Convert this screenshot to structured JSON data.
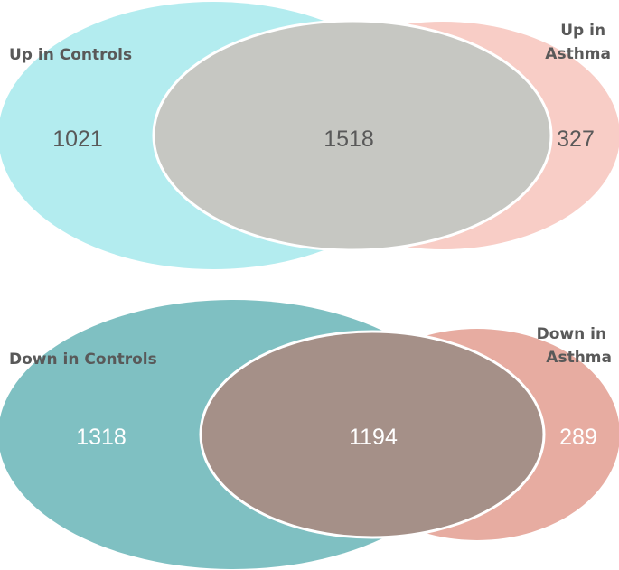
{
  "diagrams": [
    {
      "left_set": {
        "label_lines": [
          "Up in Controls"
        ],
        "count": "1021",
        "color": "#b3ecef"
      },
      "right_set": {
        "label_lines": [
          "Up in",
          "Asthma"
        ],
        "count": "327",
        "color": "#f8cdc6"
      },
      "intersection": {
        "count": "1518",
        "color": "#c6c7c2"
      },
      "label_color": "#595959",
      "count_color": "#595959"
    },
    {
      "left_set": {
        "label_lines": [
          "Down in Controls"
        ],
        "count": "1318",
        "color": "#7fc0c2"
      },
      "right_set": {
        "label_lines": [
          "Down in",
          "Asthma"
        ],
        "count": "289",
        "color": "#e7aca1"
      },
      "intersection": {
        "count": "1194",
        "color": "#a59088"
      },
      "label_color": "#595959",
      "count_color": "#ffffff"
    }
  ]
}
